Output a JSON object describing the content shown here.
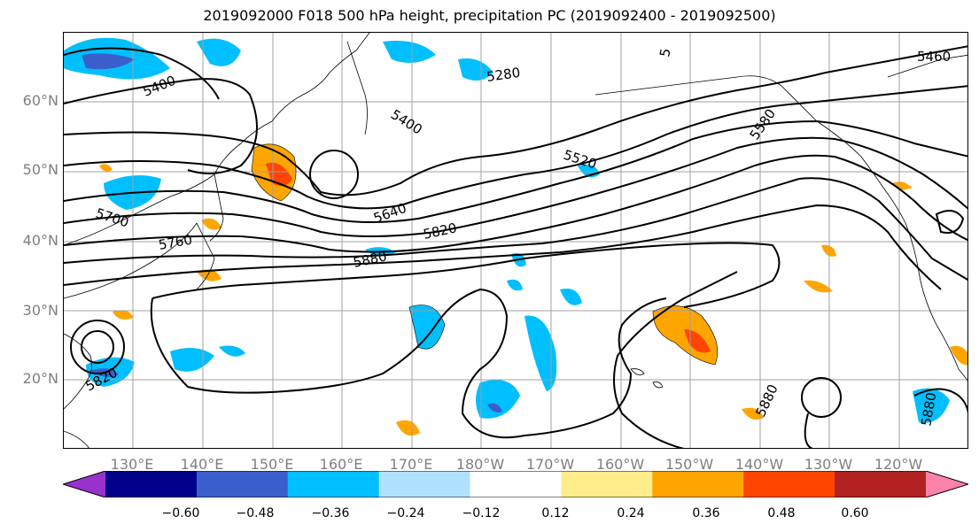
{
  "title": "2019092000 F018 500 hPa height, precipitation PC (2019092400 - 2019092500)",
  "lat_labels": [
    "60°N",
    "50°N",
    "40°N",
    "30°N",
    "20°N"
  ],
  "lon_labels": [
    "130°E",
    "140°E",
    "150°E",
    "160°E",
    "170°E",
    "180°W",
    "170°W",
    "160°W",
    "150°W",
    "140°W",
    "130°W",
    "120°W"
  ],
  "contour_labels": [
    "5400",
    "5280",
    "5400",
    "5460",
    "5520",
    "5580",
    "5640",
    "5700",
    "5760",
    "5820",
    "5880",
    "5820",
    "5880",
    "5880",
    "5"
  ],
  "colorbar": {
    "colors": [
      "#9932cc",
      "#00008b",
      "#3a5fcd",
      "#00bfff",
      "#b0e2ff",
      "#ffffff",
      "#ffec8b",
      "#ffa500",
      "#ff4500",
      "#b22222",
      "#ff82ab"
    ],
    "ticks": [
      "−0.60",
      "−0.48",
      "−0.36",
      "−0.24",
      "−0.12",
      "0.12",
      "0.24",
      "0.36",
      "0.48",
      "0.60"
    ]
  }
}
